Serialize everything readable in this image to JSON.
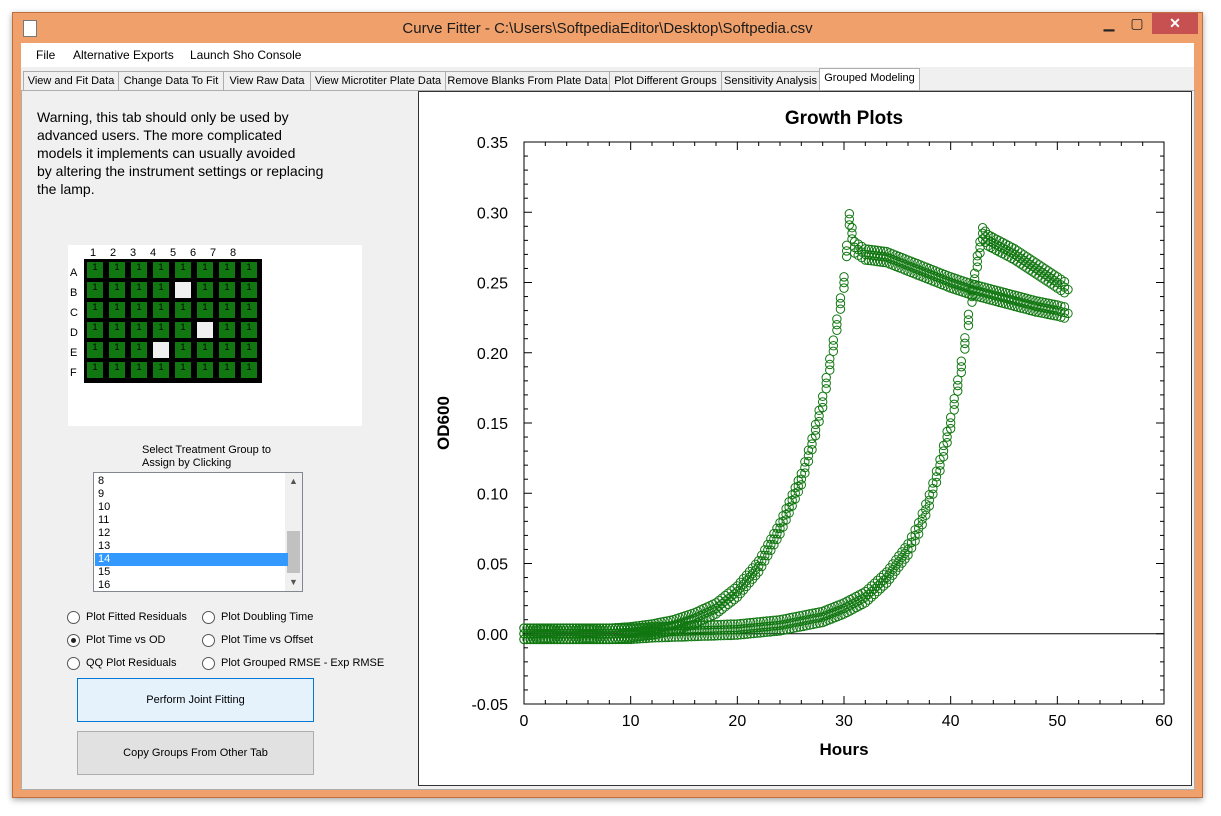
{
  "window": {
    "title": "Curve Fitter - C:\\Users\\SoftpediaEditor\\Desktop\\Softpedia.csv"
  },
  "menu": [
    "File",
    "Alternative Exports",
    "Launch Sho Console"
  ],
  "tabs": [
    {
      "label": "View and Fit Data",
      "active": false
    },
    {
      "label": "Change Data To Fit",
      "active": false
    },
    {
      "label": "View Raw Data",
      "active": false
    },
    {
      "label": "View Microtiter Plate Data",
      "active": false
    },
    {
      "label": "Remove Blanks From Plate Data",
      "active": false
    },
    {
      "label": "Plot Different Groups",
      "active": false
    },
    {
      "label": "Sensitivity Analysis",
      "active": false
    },
    {
      "label": "Grouped Modeling",
      "active": true
    }
  ],
  "warning": [
    "Warning, this tab should only be used by",
    "advanced users.  The more complicated",
    "models it implements can usually avoided",
    "by altering the instrument settings or replacing",
    "the lamp."
  ],
  "plate": {
    "columns": [
      "1",
      "2",
      "3",
      "4",
      "5",
      "6",
      "7",
      "8"
    ],
    "rows": [
      "A",
      "B",
      "C",
      "D",
      "E",
      "F"
    ],
    "well_label": "1",
    "blank_wells": [
      "B5",
      "D6",
      "E4"
    ],
    "well_color": "#117711"
  },
  "treatment": {
    "label_line1": "Select Treatment Group to",
    "label_line2": "Assign by Clicking",
    "items": [
      "8",
      "9",
      "10",
      "11",
      "12",
      "13",
      "14",
      "15",
      "16"
    ],
    "selected": "14"
  },
  "options": [
    {
      "label": "Plot Fitted Residuals",
      "checked": false
    },
    {
      "label": "Plot Doubling Time",
      "checked": false
    },
    {
      "label": "Plot Time vs OD",
      "checked": true
    },
    {
      "label": "Plot Time vs Offset",
      "checked": false
    },
    {
      "label": "QQ Plot Residuals",
      "checked": false
    },
    {
      "label": "Plot Grouped RMSE - Exp RMSE",
      "checked": false
    }
  ],
  "buttons": {
    "joint_fit": "Perform Joint Fitting",
    "copy_groups": "Copy Groups From Other Tab"
  },
  "chart_data": {
    "type": "scatter",
    "title": "Growth Plots",
    "xlabel": "Hours",
    "ylabel": "OD600",
    "xlim": [
      0,
      60
    ],
    "ylim": [
      -0.05,
      0.35
    ],
    "xticks": [
      "0",
      "10",
      "20",
      "30",
      "40",
      "50",
      "60"
    ],
    "yticks": [
      "-0.05",
      "0.00",
      "0.05",
      "0.10",
      "0.15",
      "0.20",
      "0.25",
      "0.30",
      "0.35"
    ],
    "marker": "open-circle",
    "color": "#117711",
    "series": [
      {
        "x": [
          0,
          2,
          4,
          6,
          8,
          10,
          12,
          14,
          16,
          18,
          20,
          22,
          24,
          26,
          27,
          28,
          29,
          30,
          30.5,
          31,
          32,
          34,
          36,
          38,
          40,
          42,
          44,
          46,
          48,
          50,
          51
        ],
        "y": [
          0.0,
          0.0,
          0.0,
          0.0,
          0.0,
          0.001,
          0.003,
          0.006,
          0.011,
          0.018,
          0.03,
          0.048,
          0.075,
          0.11,
          0.135,
          0.165,
          0.205,
          0.25,
          0.295,
          0.275,
          0.27,
          0.268,
          0.262,
          0.256,
          0.25,
          0.245,
          0.241,
          0.237,
          0.233,
          0.23,
          0.228
        ]
      },
      {
        "x": [
          0,
          4,
          8,
          10,
          12,
          16,
          20,
          24,
          28,
          30,
          32,
          34,
          36,
          37,
          38,
          39,
          40,
          41,
          42,
          42.5,
          43,
          43.5,
          44,
          46,
          48,
          50,
          51
        ],
        "y": [
          0.0,
          0.0,
          0.0,
          0.0,
          0.001,
          0.002,
          0.003,
          0.006,
          0.012,
          0.018,
          0.026,
          0.04,
          0.06,
          0.075,
          0.095,
          0.12,
          0.15,
          0.19,
          0.24,
          0.265,
          0.285,
          0.28,
          0.278,
          0.27,
          0.26,
          0.25,
          0.245
        ]
      }
    ]
  }
}
